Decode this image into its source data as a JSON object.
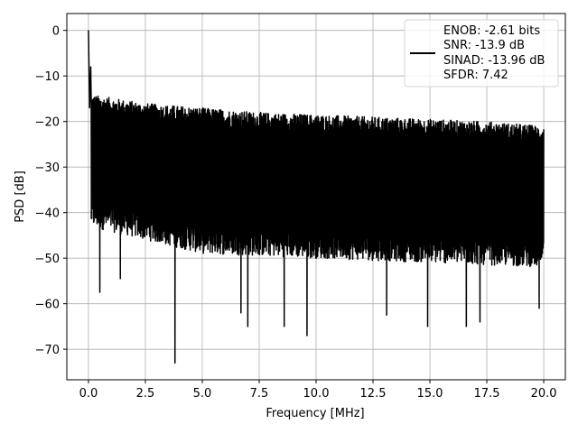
{
  "chart_data": {
    "type": "line",
    "title": "",
    "xlabel": "Frequency [MHz]",
    "ylabel": "PSD [dB]",
    "xlim": [
      -0.95,
      20.95
    ],
    "ylim": [
      -76.7,
      3.7
    ],
    "x_ticks": [
      0.0,
      2.5,
      5.0,
      7.5,
      10.0,
      12.5,
      15.0,
      17.5,
      20.0
    ],
    "x_tick_labels": [
      "0.0",
      "2.5",
      "5.0",
      "7.5",
      "10.0",
      "12.5",
      "15.0",
      "17.5",
      "20.0"
    ],
    "y_ticks": [
      0,
      -10,
      -20,
      -30,
      -40,
      -50,
      -60,
      -70
    ],
    "y_tick_labels": [
      "0",
      "−10",
      "−20",
      "−30",
      "−40",
      "−50",
      "−60",
      "−70"
    ],
    "grid": true,
    "legend_position": "top-right",
    "series_color": "#000000",
    "legend": [
      "ENOB: -2.61 bits",
      "SNR: -13.9 dB",
      "SINAD: -13.96 dB",
      "SFDR: 7.42"
    ],
    "series": [
      {
        "noise_floor_db": [
          [
            0.0,
            -32
          ],
          [
            2.5,
            -32
          ],
          [
            5.0,
            -32.5
          ],
          [
            10.0,
            -33
          ],
          [
            15.0,
            -33.5
          ],
          [
            20.0,
            -34
          ]
        ],
        "upper_envelope_db": [
          [
            0.0,
            -17
          ],
          [
            2.5,
            -19
          ],
          [
            5.0,
            -20
          ],
          [
            7.5,
            -21
          ],
          [
            10.0,
            -21.5
          ],
          [
            12.5,
            -22
          ],
          [
            15.0,
            -22.5
          ],
          [
            17.5,
            -23
          ],
          [
            20.0,
            -24
          ]
        ],
        "lower_envelope_db": [
          [
            0.0,
            -40
          ],
          [
            5.0,
            -46
          ],
          [
            10.0,
            -47
          ],
          [
            15.0,
            -48
          ],
          [
            20.0,
            -49
          ]
        ],
        "peaks_db": [
          [
            0.0,
            0.0
          ],
          [
            0.05,
            -17
          ],
          [
            0.1,
            -8
          ]
        ],
        "notable_dips_db": [
          [
            0.5,
            -57.5
          ],
          [
            1.4,
            -54.5
          ],
          [
            3.8,
            -73
          ],
          [
            6.7,
            -62
          ],
          [
            7.0,
            -65
          ],
          [
            8.6,
            -65
          ],
          [
            9.6,
            -67
          ],
          [
            13.1,
            -62.5
          ],
          [
            14.9,
            -65
          ],
          [
            16.6,
            -65
          ],
          [
            17.2,
            -64
          ],
          [
            19.8,
            -61
          ]
        ]
      }
    ]
  }
}
